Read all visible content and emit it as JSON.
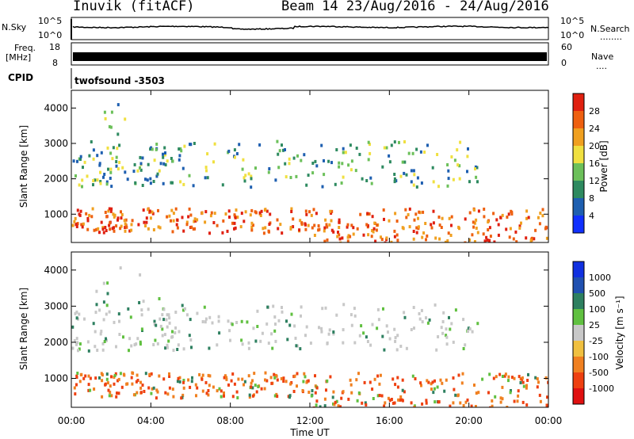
{
  "header": {
    "station": "Inuvik (fitACF)",
    "beam_range": "Beam 14 23/Aug/2016 - 24/Aug/2016"
  },
  "top_panels": {
    "nsky_label": "N.Sky",
    "nsky_ticks": [
      "10^5",
      "10^0"
    ],
    "nsearch_label": "N.Search",
    "nsearch_dots": "........",
    "nsearch_ticks": [
      "10^5",
      "10^0"
    ],
    "freq_label": "Freq.",
    "freq_unit": "[MHz]",
    "freq_ticks": [
      "18",
      "8"
    ],
    "nave_label": "Nave",
    "nave_dots": "....",
    "nave_ticks": [
      "60",
      "0"
    ],
    "cpid_label": "CPID",
    "cpid_text": "twofsound -3503"
  },
  "chart_data": [
    {
      "type": "heatmap",
      "name": "power",
      "ylabel": "Slant Range [km]",
      "yticks": [
        "1000",
        "2000",
        "3000",
        "4000"
      ],
      "ylim": [
        200,
        4500
      ],
      "colorbar_label": "Power [dB]",
      "colorbar_ticks": [
        "4",
        "8",
        "12",
        "16",
        "20",
        "24",
        "28"
      ],
      "colors": [
        "#1030ff",
        "#1e5fb0",
        "#2e8a60",
        "#6cc05a",
        "#f0e040",
        "#f0a020",
        "#ee6010",
        "#e02010"
      ]
    },
    {
      "type": "heatmap",
      "name": "velocity",
      "ylabel": "Slant Range [km]",
      "yticks": [
        "1000",
        "2000",
        "3000",
        "4000"
      ],
      "ylim": [
        200,
        4500
      ],
      "colorbar_label": "Velocity [m s⁻¹]",
      "colorbar_ticks": [
        "1000",
        "500",
        "100",
        "25",
        "-25",
        "-100",
        "-500",
        "-1000"
      ],
      "colors": [
        "#1030e0",
        "#2050b0",
        "#2e8060",
        "#60c040",
        "#c8c8c8",
        "#f0c040",
        "#f08020",
        "#ee4010",
        "#e01010"
      ]
    }
  ],
  "xaxis": {
    "label": "Time UT",
    "ticks": [
      "00:00",
      "04:00",
      "08:00",
      "12:00",
      "16:00",
      "20:00",
      "00:00"
    ]
  }
}
